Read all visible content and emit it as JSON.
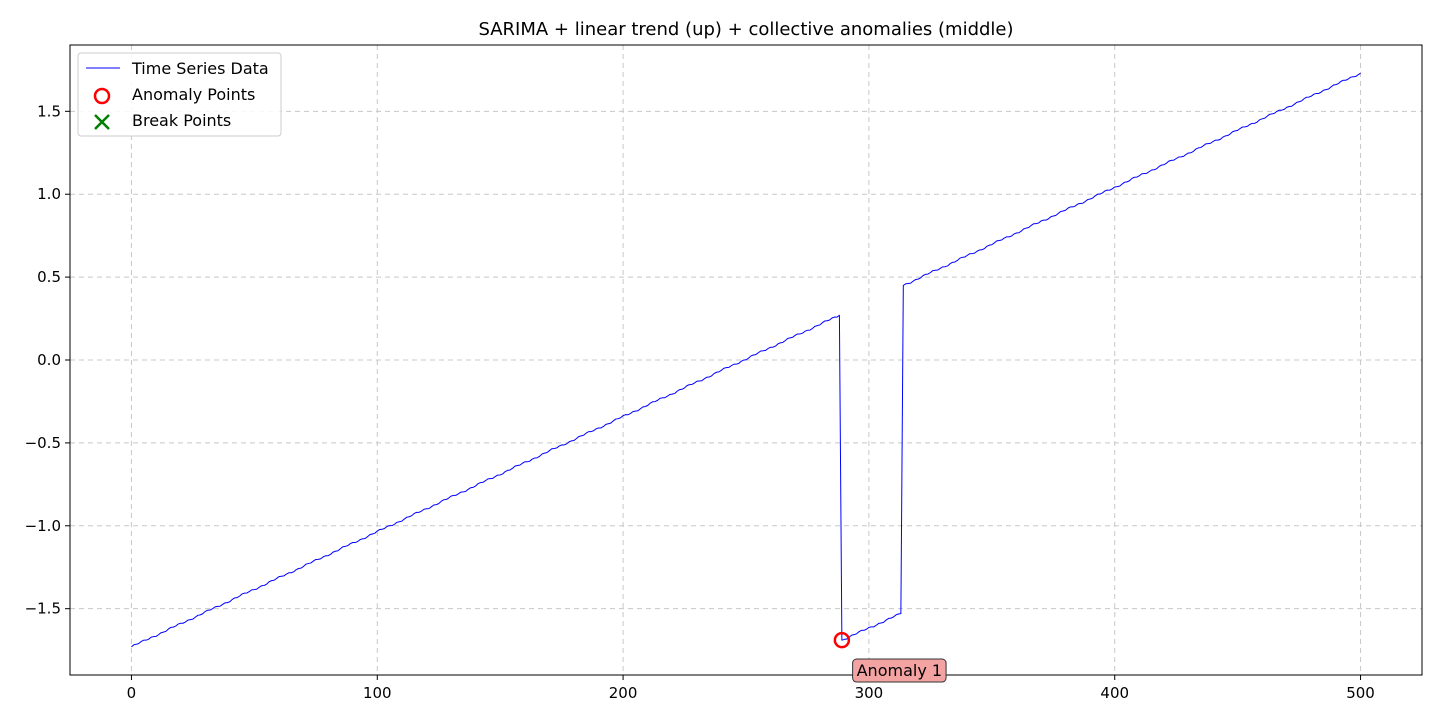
{
  "chart_data": {
    "type": "line",
    "title": "SARIMA + linear trend (up) + collective anomalies (middle)",
    "xlabel": "",
    "ylabel": "",
    "xlim": [
      -25,
      525
    ],
    "ylim": [
      -1.9,
      1.9
    ],
    "xticks": [
      0,
      100,
      200,
      300,
      400,
      500
    ],
    "yticks": [
      -1.5,
      -1.0,
      -0.5,
      0.0,
      0.5,
      1.0,
      1.5
    ],
    "grid": true,
    "legend_position": "top-left",
    "series": [
      {
        "name": "Time Series Data",
        "color": "#0000ff",
        "segments": [
          {
            "x_start": 0,
            "x_end": 288,
            "y_start": -1.73,
            "y_end": 0.27
          },
          {
            "x_start": 289,
            "x_end": 313,
            "y_start": -1.69,
            "y_end": -1.53
          },
          {
            "x_start": 314,
            "x_end": 500,
            "y_start": 0.45,
            "y_end": 1.73
          }
        ]
      }
    ],
    "anomaly_points": {
      "name": "Anomaly Points",
      "color": "#ff0000",
      "points": [
        {
          "x": 289,
          "y": -1.69
        }
      ]
    },
    "break_points": {
      "name": "Break Points",
      "color": "#008000",
      "points": []
    },
    "annotations": [
      {
        "text": "Anomaly 1",
        "x": 295,
        "y": -1.87,
        "bg": "#f4a3a3"
      }
    ]
  }
}
